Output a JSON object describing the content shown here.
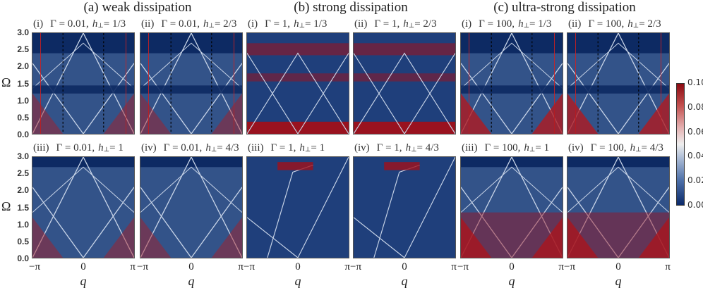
{
  "chart_data": {
    "type": "heatmap",
    "groups": [
      {
        "title": "(a) weak dissipation",
        "gamma": "0.01"
      },
      {
        "title": "(b) strong dissipation",
        "gamma": "1"
      },
      {
        "title": "(c) ultra-strong dissipation",
        "gamma": "100"
      }
    ],
    "panels": [
      {
        "group": 0,
        "row": 0,
        "index": "(i)",
        "gamma_label": "Γ = 0.01,",
        "h_value": "= 1/3"
      },
      {
        "group": 0,
        "row": 0,
        "index": "(ii)",
        "gamma_label": "Γ = 0.01,",
        "h_value": "= 2/3"
      },
      {
        "group": 1,
        "row": 0,
        "index": "(i)",
        "gamma_label": "Γ = 1,",
        "h_value": "= 1/3"
      },
      {
        "group": 1,
        "row": 0,
        "index": "(ii)",
        "gamma_label": "Γ = 1,",
        "h_value": "= 2/3"
      },
      {
        "group": 2,
        "row": 0,
        "index": "(i)",
        "gamma_label": "Γ = 100,",
        "h_value": "= 1/3"
      },
      {
        "group": 2,
        "row": 0,
        "index": "(ii)",
        "gamma_label": "Γ = 100,",
        "h_value": "= 2/3"
      },
      {
        "group": 0,
        "row": 1,
        "index": "(iii)",
        "gamma_label": "Γ = 0.01,",
        "h_value": "= 1"
      },
      {
        "group": 0,
        "row": 1,
        "index": "(iv)",
        "gamma_label": "Γ = 0.01,",
        "h_value": "= 4/3"
      },
      {
        "group": 1,
        "row": 1,
        "index": "(iii)",
        "gamma_label": "Γ = 1,",
        "h_value": "= 1"
      },
      {
        "group": 1,
        "row": 1,
        "index": "(iv)",
        "gamma_label": "Γ = 1,",
        "h_value": "= 4/3"
      },
      {
        "group": 2,
        "row": 1,
        "index": "(iii)",
        "gamma_label": "Γ = 100,",
        "h_value": "= 1"
      },
      {
        "group": 2,
        "row": 1,
        "index": "(iv)",
        "gamma_label": "Γ = 100,",
        "h_value": "= 4/3"
      }
    ],
    "h_symbol": "h",
    "h_subscript": "⊥",
    "xlabel": "q",
    "ylabel": "Ω",
    "xticks": [
      "−π",
      "0",
      "π"
    ],
    "yticks": [
      "0.0",
      "0.5",
      "1.0",
      "1.5",
      "2.0",
      "2.5",
      "3.0"
    ],
    "xlim": [
      "-π",
      "π"
    ],
    "ylim": [
      0,
      3.0
    ],
    "colorbar": {
      "ticks": [
        "0.00",
        "0.02",
        "0.04",
        "0.06",
        "0.08",
        "0.10"
      ],
      "range": [
        0,
        0.1
      ],
      "colormap": "blue-white-red",
      "colors": {
        "low": "#0b2a6b",
        "mid": "#eeeeee",
        "high": "#8c0a12"
      }
    }
  }
}
